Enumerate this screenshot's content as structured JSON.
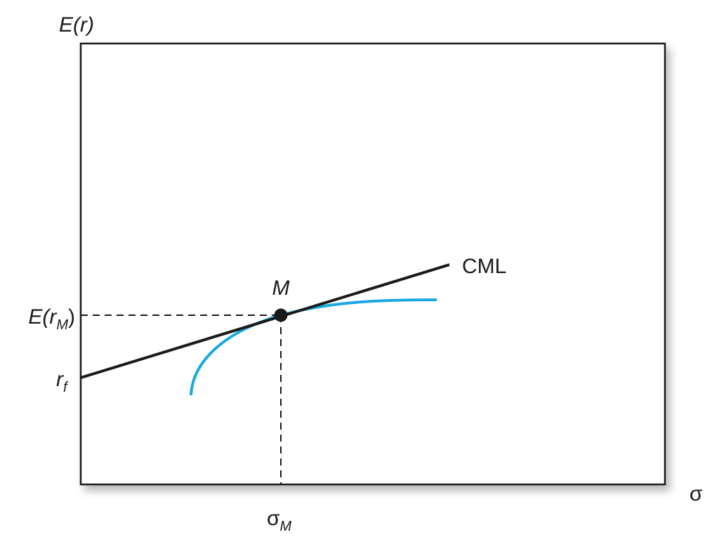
{
  "axes": {
    "y_label": "E(r)",
    "x_label": "σ"
  },
  "labels": {
    "market_return": {
      "base": "E(r",
      "sub": "M",
      "close": ")"
    },
    "risk_free": {
      "base": "r",
      "sub": "f"
    },
    "market_sigma": {
      "base": "σ",
      "sub": "M"
    }
  },
  "market_point": "M",
  "line_label": "CML"
}
